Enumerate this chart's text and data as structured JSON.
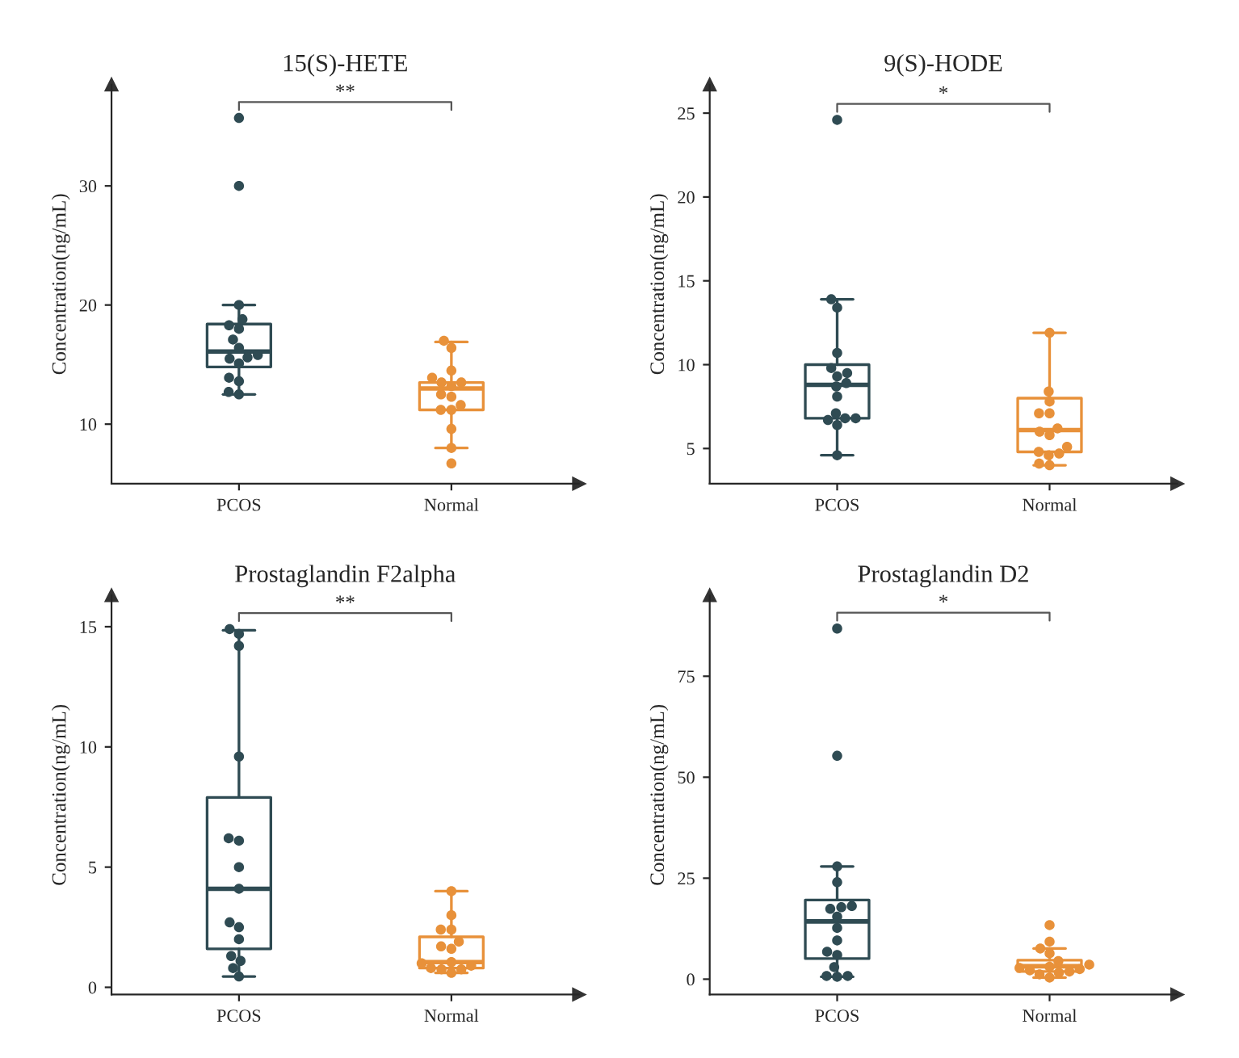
{
  "chart_data": [
    {
      "type": "box",
      "title": "15(S)-HETE",
      "ylabel": "Concentration(ng/mL)",
      "categories": [
        "PCOS",
        "Normal"
      ],
      "ylim": [
        5,
        38.5
      ],
      "yticks": [
        10,
        20,
        30
      ],
      "annotations": [
        "**"
      ],
      "colors": [
        "#2f4b53",
        "#e8913a"
      ],
      "boxes": [
        {
          "low": 12.5,
          "q1": 14.8,
          "median": 16.1,
          "q3": 18.4,
          "high": 20
        },
        {
          "low": 8.0,
          "q1": 11.2,
          "median": 13.0,
          "q3": 13.5,
          "high": 16.9
        }
      ],
      "series": [
        {
          "type": "scatter",
          "marker": "circle",
          "color": "#2f4b53",
          "x": [
            "PCOS",
            "PCOS",
            "PCOS",
            "PCOS",
            "PCOS",
            "PCOS",
            "PCOS",
            "PCOS",
            "PCOS",
            "PCOS",
            "PCOS",
            "PCOS",
            "PCOS",
            "PCOS",
            "PCOS",
            "PCOS"
          ],
          "values": [
            35.7,
            30,
            20,
            18.8,
            18.3,
            18.0,
            17.1,
            16.4,
            15.8,
            15.6,
            15.5,
            15.1,
            13.9,
            13.6,
            12.7,
            12.5
          ]
        },
        {
          "type": "scatter",
          "marker": "circle",
          "color": "#e8913a",
          "x": [
            "Normal",
            "Normal",
            "Normal",
            "Normal",
            "Normal",
            "Normal",
            "Normal",
            "Normal",
            "Normal",
            "Normal",
            "Normal",
            "Normal",
            "Normal",
            "Normal",
            "Normal"
          ],
          "values": [
            17.0,
            16.4,
            14.5,
            13.9,
            13.5,
            13.5,
            13.2,
            12.5,
            12.3,
            11.6,
            11.2,
            11.2,
            9.6,
            8.0,
            6.7
          ]
        }
      ]
    },
    {
      "type": "box",
      "title": "9(S)-HODE",
      "ylabel": "Concentration(ng/mL)",
      "categories": [
        "PCOS",
        "Normal"
      ],
      "ylim": [
        2.9,
        26.7
      ],
      "yticks": [
        5,
        10,
        15,
        20,
        25
      ],
      "annotations": [
        "*"
      ],
      "colors": [
        "#2f4b53",
        "#e8913a"
      ],
      "boxes": [
        {
          "low": 4.6,
          "q1": 6.8,
          "median": 8.8,
          "q3": 10.0,
          "high": 13.9
        },
        {
          "low": 4.0,
          "q1": 4.8,
          "median": 6.1,
          "q3": 8.0,
          "high": 11.9
        }
      ],
      "series": [
        {
          "type": "scatter",
          "marker": "circle",
          "color": "#2f4b53",
          "x": [
            "PCOS",
            "PCOS",
            "PCOS",
            "PCOS",
            "PCOS",
            "PCOS",
            "PCOS",
            "PCOS",
            "PCOS",
            "PCOS",
            "PCOS",
            "PCOS",
            "PCOS",
            "PCOS",
            "PCOS",
            "PCOS"
          ],
          "values": [
            24.6,
            13.9,
            13.4,
            10.7,
            9.8,
            9.5,
            9.3,
            8.9,
            8.7,
            8.1,
            7.1,
            6.8,
            6.8,
            6.7,
            6.4,
            4.6
          ]
        },
        {
          "type": "scatter",
          "marker": "circle",
          "color": "#e8913a",
          "x": [
            "Normal",
            "Normal",
            "Normal",
            "Normal",
            "Normal",
            "Normal",
            "Normal",
            "Normal",
            "Normal",
            "Normal",
            "Normal",
            "Normal",
            "Normal",
            "Normal"
          ],
          "values": [
            11.9,
            8.4,
            7.8,
            7.1,
            7.1,
            6.2,
            6.0,
            5.8,
            5.1,
            4.8,
            4.7,
            4.6,
            4.1,
            4.0
          ]
        }
      ]
    },
    {
      "type": "box",
      "title": "Prostaglandin F2alpha",
      "ylabel": "Concentration(ng/mL)",
      "categories": [
        "PCOS",
        "Normal"
      ],
      "ylim": [
        -0.3,
        16.3
      ],
      "yticks": [
        0,
        5,
        10,
        15
      ],
      "annotations": [
        "**"
      ],
      "colors": [
        "#2f4b53",
        "#e8913a"
      ],
      "boxes": [
        {
          "low": 0.45,
          "q1": 1.6,
          "median": 4.1,
          "q3": 7.9,
          "high": 14.85
        },
        {
          "low": 0.6,
          "q1": 0.8,
          "median": 1.05,
          "q3": 2.1,
          "high": 4.0
        }
      ],
      "series": [
        {
          "type": "scatter",
          "marker": "circle",
          "color": "#2f4b53",
          "x": [
            "PCOS",
            "PCOS",
            "PCOS",
            "PCOS",
            "PCOS",
            "PCOS",
            "PCOS",
            "PCOS",
            "PCOS",
            "PCOS",
            "PCOS",
            "PCOS",
            "PCOS",
            "PCOS",
            "PCOS"
          ],
          "values": [
            14.9,
            14.7,
            14.2,
            9.6,
            6.2,
            6.1,
            5.0,
            4.1,
            2.7,
            2.5,
            2.0,
            1.3,
            1.1,
            0.8,
            0.45
          ]
        },
        {
          "type": "scatter",
          "marker": "circle",
          "color": "#e8913a",
          "x": [
            "Normal",
            "Normal",
            "Normal",
            "Normal",
            "Normal",
            "Normal",
            "Normal",
            "Normal",
            "Normal",
            "Normal",
            "Normal",
            "Normal",
            "Normal",
            "Normal"
          ],
          "values": [
            4.0,
            3.0,
            2.4,
            2.4,
            1.9,
            1.7,
            1.6,
            1.05,
            1.0,
            0.9,
            0.8,
            0.75,
            0.75,
            0.6
          ]
        }
      ]
    },
    {
      "type": "box",
      "title": "Prostaglandin D2",
      "ylabel": "Concentration(ng/mL)",
      "categories": [
        "PCOS",
        "Normal"
      ],
      "ylim": [
        -3.8,
        95
      ],
      "yticks": [
        0,
        25,
        50,
        75
      ],
      "annotations": [
        "*"
      ],
      "colors": [
        "#2f4b53",
        "#e8913a"
      ],
      "boxes": [
        {
          "low": 0.6,
          "q1": 5.1,
          "median": 14.3,
          "q3": 19.6,
          "high": 27.9
        },
        {
          "low": 0.4,
          "q1": 1.9,
          "median": 3.2,
          "q3": 4.7,
          "high": 7.6
        }
      ],
      "series": [
        {
          "type": "scatter",
          "marker": "circle",
          "color": "#2f4b53",
          "x": [
            "PCOS",
            "PCOS",
            "PCOS",
            "PCOS",
            "PCOS",
            "PCOS",
            "PCOS",
            "PCOS",
            "PCOS",
            "PCOS",
            "PCOS",
            "PCOS",
            "PCOS",
            "PCOS",
            "PCOS",
            "PCOS"
          ],
          "values": [
            86.8,
            55.3,
            27.9,
            24.0,
            18.1,
            17.8,
            17.4,
            15.5,
            12.7,
            9.6,
            6.8,
            6.0,
            3.0,
            0.8,
            0.8,
            0.6
          ]
        },
        {
          "type": "scatter",
          "marker": "circle",
          "color": "#e8913a",
          "x": [
            "Normal",
            "Normal",
            "Normal",
            "Normal",
            "Normal",
            "Normal",
            "Normal",
            "Normal",
            "Normal",
            "Normal",
            "Normal",
            "Normal",
            "Normal",
            "Normal"
          ],
          "values": [
            13.4,
            9.3,
            7.6,
            6.4,
            4.5,
            3.6,
            3.1,
            2.8,
            2.5,
            2.2,
            1.9,
            1.6,
            1.2,
            0.4
          ]
        }
      ]
    }
  ]
}
